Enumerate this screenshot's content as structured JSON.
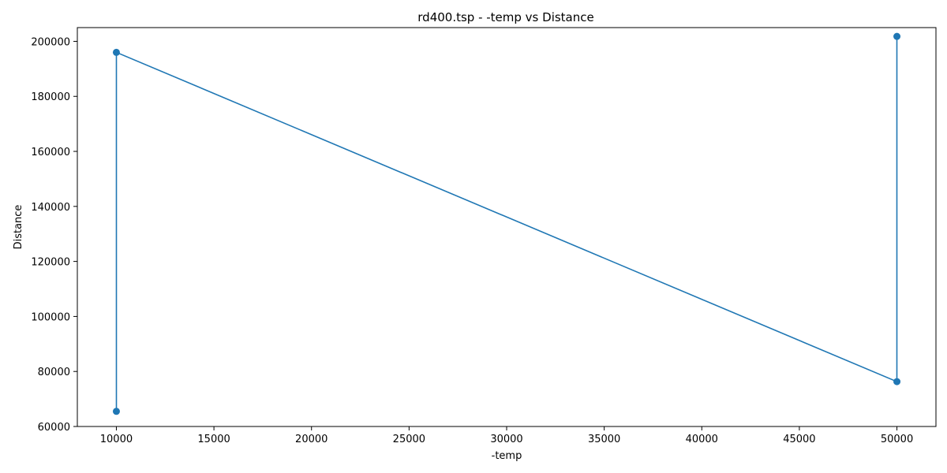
{
  "chart_data": {
    "type": "line",
    "title": "rd400.tsp - -temp vs Distance",
    "xlabel": "-temp",
    "ylabel": "Distance",
    "xlim": [
      8000,
      52000
    ],
    "ylim": [
      60000,
      205000
    ],
    "xticks": [
      10000,
      15000,
      20000,
      25000,
      30000,
      35000,
      40000,
      45000,
      50000
    ],
    "yticks": [
      60000,
      80000,
      100000,
      120000,
      140000,
      160000,
      180000,
      200000
    ],
    "grid": false,
    "series": [
      {
        "color": "#1f77b4",
        "marker": "circle",
        "points": [
          {
            "x": 10000,
            "y": 65500
          },
          {
            "x": 10000,
            "y": 196000
          },
          {
            "x": 50000,
            "y": 76300
          },
          {
            "x": 50000,
            "y": 201800
          }
        ]
      }
    ]
  }
}
